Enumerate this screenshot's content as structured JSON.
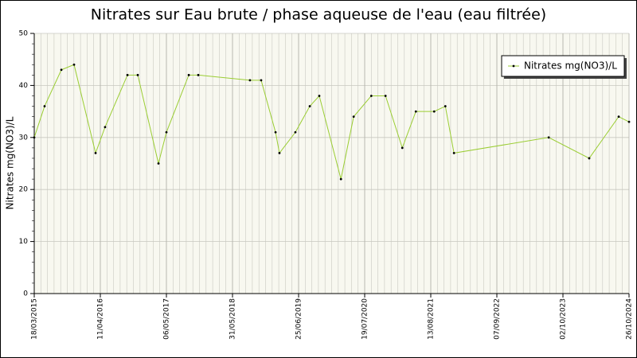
{
  "chart_data": {
    "type": "line",
    "title": "Nitrates sur Eau brute / phase aqueuse de l'eau (eau filtrée)",
    "y_label": "Nitrates mg(NO3)/L",
    "x": [
      "2015-03-18",
      "2015-05-18",
      "2015-08-25",
      "2015-11-08",
      "2016-03-14",
      "2016-05-09",
      "2016-09-18",
      "2016-11-18",
      "2017-03-20",
      "2017-05-06",
      "2017-09-15",
      "2017-11-10",
      "2018-09-11",
      "2018-11-16",
      "2019-02-09",
      "2019-03-04",
      "2019-06-06",
      "2019-08-30",
      "2019-10-25",
      "2020-03-01",
      "2020-05-15",
      "2020-08-27",
      "2020-11-19",
      "2021-02-26",
      "2021-05-17",
      "2021-09-02",
      "2021-11-07",
      "2021-12-28",
      "2023-07-10",
      "2024-03-05",
      "2024-08-26",
      "2024-10-26"
    ],
    "series": [
      {
        "name": "Nitrates mg(NO3)/L",
        "color": "#9acd32",
        "values": [
          30,
          36,
          43,
          44,
          27,
          32,
          42,
          42,
          25,
          31,
          42,
          42,
          41,
          41,
          31,
          27,
          31,
          36,
          38,
          22,
          34,
          38,
          38,
          28,
          35,
          35,
          36,
          27,
          30,
          26,
          34,
          33
        ]
      }
    ],
    "xlim": [
      "2015-03-18",
      "2024-10-26"
    ],
    "xticks": [
      {
        "value": "2015-03-18",
        "label": "18/03/2015"
      },
      {
        "value": "2016-04-11",
        "label": "11/04/2016"
      },
      {
        "value": "2017-05-06",
        "label": "06/05/2017"
      },
      {
        "value": "2018-05-31",
        "label": "31/05/2018"
      },
      {
        "value": "2019-06-25",
        "label": "25/06/2019"
      },
      {
        "value": "2020-07-19",
        "label": "19/07/2020"
      },
      {
        "value": "2021-08-13",
        "label": "13/08/2021"
      },
      {
        "value": "2022-09-07",
        "label": "07/09/2022"
      },
      {
        "value": "2023-10-02",
        "label": "02/10/2023"
      },
      {
        "value": "2024-10-26",
        "label": "26/10/2024"
      }
    ],
    "ylim": [
      0,
      50
    ],
    "yticks": [
      0,
      10,
      20,
      30,
      40,
      50
    ],
    "grid": true,
    "legend": "upper right"
  }
}
